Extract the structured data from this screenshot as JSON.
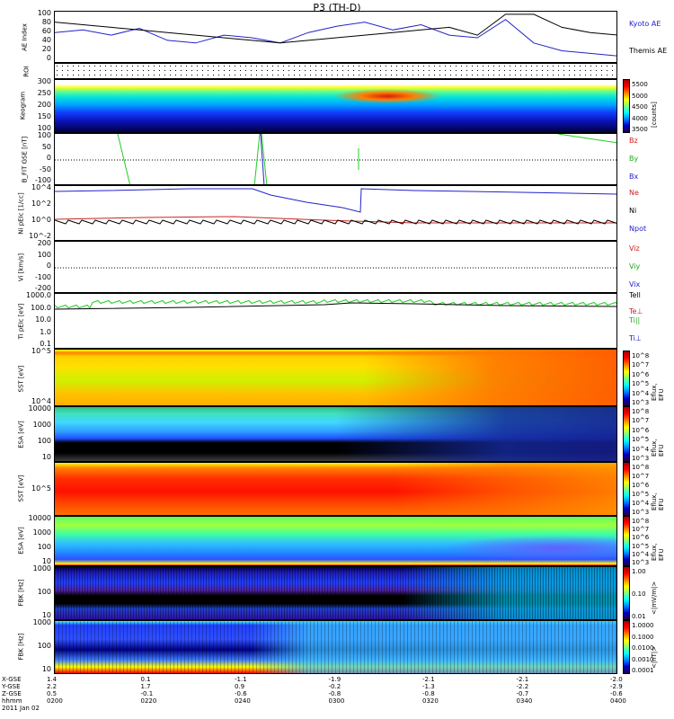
{
  "title": "P3 (TH-D)",
  "colors": {
    "black": "#000000",
    "blue": "#2222cc",
    "red": "#cc2222",
    "green": "#22cc22"
  },
  "chart_data": [
    {
      "type": "line",
      "panel": "ae",
      "ylabel": "AE Index",
      "yticks": [
        "100",
        "80",
        "60",
        "40",
        "20",
        "0"
      ],
      "ylim": [
        0,
        100
      ],
      "x": [
        0,
        10,
        20,
        30,
        40,
        50,
        60,
        70,
        80,
        90,
        100,
        110,
        120,
        130,
        140,
        150,
        160,
        170,
        180,
        190,
        200
      ],
      "series": [
        {
          "name": "Kyoto AE",
          "color": "blue",
          "values": [
            60,
            65,
            55,
            68,
            45,
            40,
            55,
            50,
            40,
            60,
            72,
            80,
            65,
            75,
            55,
            50,
            85,
            40,
            25,
            20,
            15
          ]
        },
        {
          "name": "Themis AE",
          "color": "black",
          "values": [
            80,
            75,
            70,
            65,
            60,
            55,
            50,
            45,
            40,
            45,
            50,
            55,
            60,
            65,
            70,
            55,
            95,
            95,
            70,
            60,
            55
          ]
        }
      ]
    },
    {
      "type": "heatmap",
      "panel": "roi",
      "ylabel": "ROI"
    },
    {
      "type": "heatmap",
      "panel": "keogram",
      "ylabel": "Keogram",
      "yticks": [
        "300",
        "250",
        "200",
        "150",
        "100"
      ],
      "colorbar": {
        "label": "[counts]",
        "ticks": [
          "5500",
          "5000",
          "4500",
          "4000",
          "3500"
        ]
      }
    },
    {
      "type": "line",
      "panel": "bfield",
      "ylabel": "B_FIT GSE [nT]",
      "yticks": [
        "100",
        "50",
        "0",
        "-50",
        "-100"
      ],
      "ylim": [
        -100,
        100
      ],
      "series": [
        {
          "name": "Bz",
          "color": "red"
        },
        {
          "name": "By",
          "color": "green"
        },
        {
          "name": "Bx",
          "color": "blue"
        }
      ]
    },
    {
      "type": "line",
      "panel": "density",
      "ylabel": "Ni pEIc [1/cc]",
      "yticks": [
        "10^4",
        "10^2",
        "10^0",
        "10^-2"
      ],
      "series": [
        {
          "name": "Ne",
          "color": "red"
        },
        {
          "name": "Ni",
          "color": "black"
        },
        {
          "name": "Npot",
          "color": "blue"
        }
      ]
    },
    {
      "type": "line",
      "panel": "velocity",
      "ylabel": "Vi [km/s]",
      "yticks": [
        "200",
        "100",
        "0",
        "-100",
        "-200"
      ],
      "ylim": [
        -250,
        250
      ],
      "series": [
        {
          "name": "Viz",
          "color": "red"
        },
        {
          "name": "Viy",
          "color": "green"
        },
        {
          "name": "Vix",
          "color": "blue"
        }
      ]
    },
    {
      "type": "line",
      "panel": "temperature",
      "ylabel": "Ti pEIc [eV]",
      "yticks": [
        "1000.0",
        "100.0",
        "10.0",
        "1.0",
        "0.1"
      ],
      "series": [
        {
          "name": "Tell",
          "color": "black"
        },
        {
          "name": "Te⊥",
          "color": "red"
        },
        {
          "name": "Ti||",
          "color": "green"
        },
        {
          "name": "Ti⊥",
          "color": "blue"
        }
      ]
    },
    {
      "type": "heatmap",
      "panel": "sst1",
      "ylabel": "SST [eV]",
      "yticks": [
        "10^5",
        "10^4"
      ],
      "colorbar": {
        "label": "Eflux, EFU",
        "ticks": [
          "10^8",
          "10^7",
          "10^6",
          "10^5",
          "10^4",
          "10^3"
        ]
      }
    },
    {
      "type": "heatmap",
      "panel": "esa1",
      "ylabel": "ESA [eV]",
      "yticks": [
        "10000",
        "1000",
        "100",
        "10"
      ],
      "colorbar": {
        "label": "Eflux, EFU",
        "ticks": [
          "10^8",
          "10^7",
          "10^6",
          "10^5",
          "10^4",
          "10^3"
        ]
      }
    },
    {
      "type": "heatmap",
      "panel": "sst2",
      "ylabel": "SST [eV]",
      "yticks": [
        "10^5"
      ],
      "colorbar": {
        "label": "Eflux, EFU",
        "ticks": [
          "10^8",
          "10^7",
          "10^6",
          "10^5",
          "10^4",
          "10^3"
        ]
      }
    },
    {
      "type": "heatmap",
      "panel": "esa2",
      "ylabel": "ESA [eV]",
      "yticks": [
        "10000",
        "1000",
        "100",
        "10"
      ],
      "colorbar": {
        "label": "Eflux, EFU",
        "ticks": [
          "10^8",
          "10^7",
          "10^6",
          "10^5",
          "10^4",
          "10^3"
        ]
      }
    },
    {
      "type": "heatmap",
      "panel": "fbk1",
      "ylabel": "FBK [Hz]",
      "yticks": [
        "1000",
        "100",
        "10"
      ],
      "colorbar": {
        "label": "<|mV/m|>",
        "ticks": [
          "1.00",
          "0.10",
          "0.01"
        ]
      }
    },
    {
      "type": "heatmap",
      "panel": "fbk2",
      "ylabel": "FBK [Hz]",
      "yticks": [
        "1000",
        "100",
        "10"
      ],
      "colorbar": {
        "label": "<|nT|>",
        "ticks": [
          "1.0000",
          "0.1000",
          "0.0100",
          "0.0010",
          "0.0001"
        ]
      }
    }
  ],
  "xaxis": {
    "row_labels": [
      "X-GSE",
      "Y-GSE",
      "Z-GSE",
      "hhmm",
      "2011 Jan 02"
    ],
    "columns": [
      {
        "x": "1.4",
        "y": "2.2",
        "z": "0.5",
        "t": "0200"
      },
      {
        "x": "0.1",
        "y": "1.7",
        "z": "-0.1",
        "t": "0220"
      },
      {
        "x": "-1.1",
        "y": "0.9",
        "z": "-0.6",
        "t": "0240"
      },
      {
        "x": "-1.9",
        "y": "-0.2",
        "z": "-0.8",
        "t": "0300"
      },
      {
        "x": "-2.1",
        "y": "-1.3",
        "z": "-0.8",
        "t": "0320"
      },
      {
        "x": "-2.1",
        "y": "-2.2",
        "z": "-0.7",
        "t": "0340"
      },
      {
        "x": "-2.0",
        "y": "-2.9",
        "z": "-0.6",
        "t": "0400"
      }
    ]
  }
}
